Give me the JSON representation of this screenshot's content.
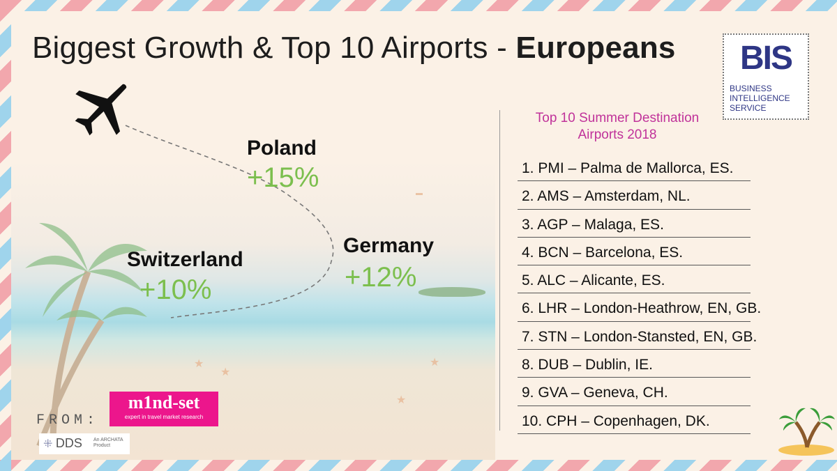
{
  "title": {
    "main": "Biggest Growth & Top 10 Airports - ",
    "bold": "Europeans"
  },
  "logo_bis": {
    "mark": "BIS",
    "line1": "BUSINESS",
    "line2": "INTELLIGENCE",
    "line3": "SERVICE"
  },
  "countries": [
    {
      "name": "Poland",
      "growth": "+15%"
    },
    {
      "name": "Germany",
      "growth": "+12%"
    },
    {
      "name": "Switzerland",
      "growth": "+10%"
    }
  ],
  "list": {
    "title_line1": "Top 10 Summer Destination",
    "title_line2": "Airports 2018",
    "items": [
      "1.  PMI – Palma de Mallorca, ES.",
      "2.  AMS – Amsterdam, NL.",
      "3.  AGP – Malaga, ES.",
      "4.  BCN – Barcelona, ES.",
      "5.  ALC – Alicante, ES.",
      "6.  LHR – London-Heathrow, EN, GB.",
      "7.  STN – London-Stansted, EN, GB.",
      "8.  DUB – Dublin, IE.",
      "9.  GVA – Geneva, CH.",
      "10. CPH – Copenhagen, DK."
    ]
  },
  "footer": {
    "from": "FROM:",
    "mindset_name": "m1nd-set",
    "mindset_tag": "expert in travel market research",
    "dds_name": "DDS",
    "dds_sub": "An ARCHATA Product"
  },
  "colors": {
    "growth": "#7cbf4e",
    "list_title": "#c0329a",
    "bis_blue": "#2e3685",
    "mindset_pink": "#ec168c"
  },
  "icons": [
    "airplane-icon",
    "palm-island-icon"
  ]
}
